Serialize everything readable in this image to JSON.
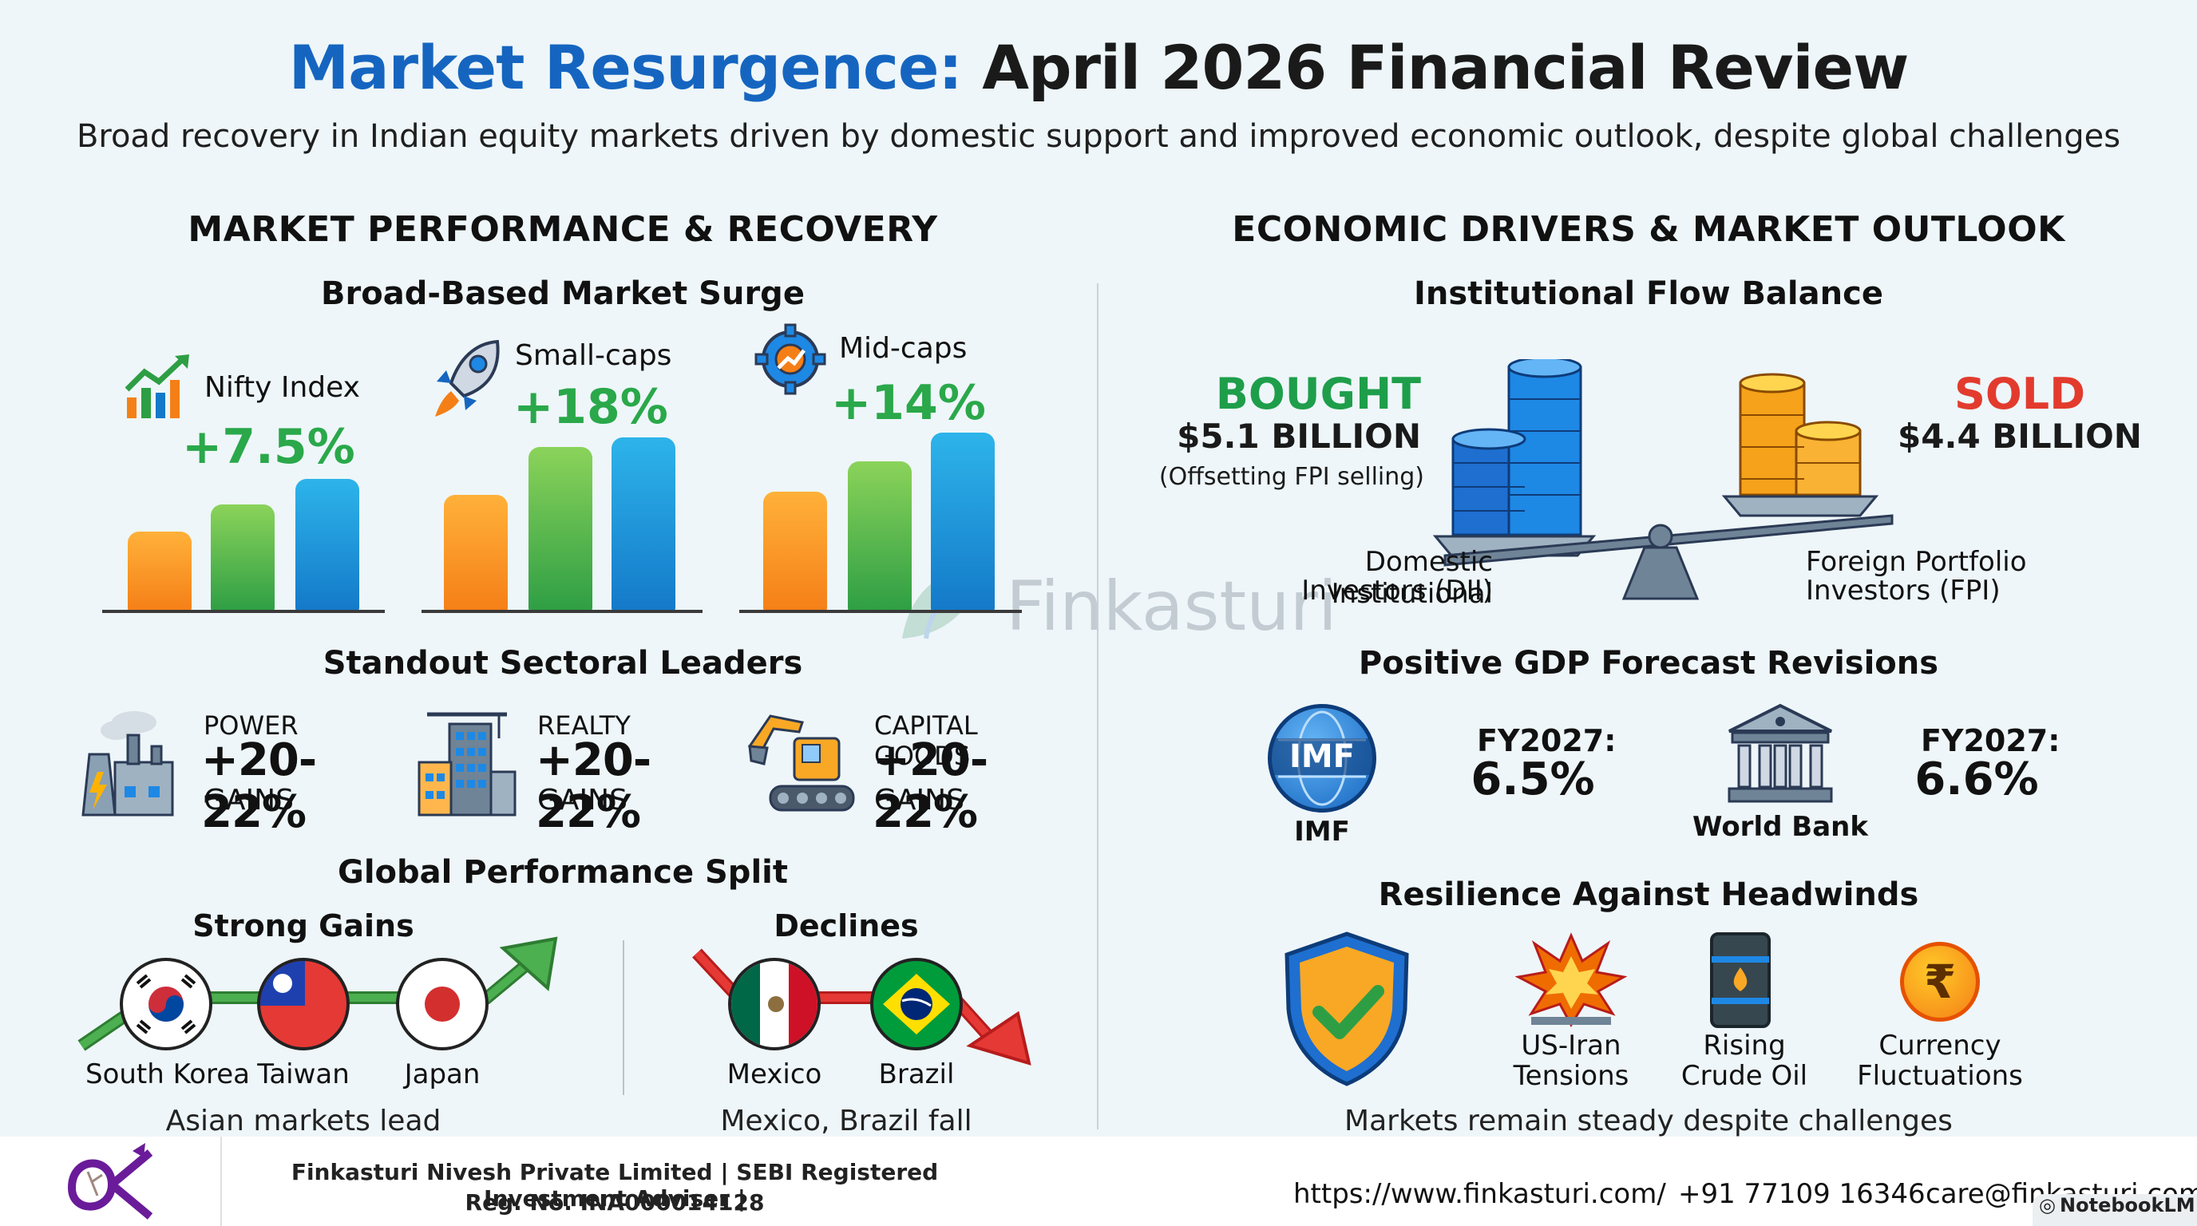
{
  "header": {
    "title_blue": "Market Resurgence:",
    "title_dark": "April 2026 Financial Review",
    "subtitle": "Broad recovery in Indian equity markets driven by domestic support and improved economic outlook, despite global challenges"
  },
  "left": {
    "heading": "MARKET PERFORMANCE & RECOVERY",
    "surge": {
      "heading": "Broad-Based Market Surge",
      "indices": [
        {
          "label": "Nifty Index",
          "value": "+7.5%",
          "icon": "chart-up-icon"
        },
        {
          "label": "Small-caps",
          "value": "+18%",
          "icon": "rocket-icon"
        },
        {
          "label": "Mid-caps",
          "value": "+14%",
          "icon": "gear-icon"
        }
      ]
    },
    "sectors": {
      "heading": "Standout Sectoral Leaders",
      "items": [
        {
          "name": "POWER",
          "value": "+20-22%",
          "suffix": "GAINS",
          "icon": "factory-icon"
        },
        {
          "name": "REALTY",
          "value": "+20-22%",
          "suffix": "GAINS",
          "icon": "building-icon"
        },
        {
          "name": "CAPITAL GOODS",
          "value": "+20-22%",
          "suffix": "GAINS",
          "icon": "excavator-icon"
        }
      ]
    },
    "global": {
      "heading": "Global Performance Split",
      "gains_heading": "Strong Gains",
      "declines_heading": "Declines",
      "gains": [
        "South Korea",
        "Taiwan",
        "Japan"
      ],
      "declines": [
        "Mexico",
        "Brazil"
      ],
      "gains_caption": "Asian markets lead",
      "declines_caption": "Mexico, Brazil fall"
    }
  },
  "right": {
    "heading": "ECONOMIC DRIVERS & MARKET OUTLOOK",
    "flow": {
      "heading": "Institutional Flow Balance",
      "bought_label": "BOUGHT",
      "bought_value": "$5.1 BILLION",
      "bought_note": "(Offsetting FPI selling)",
      "sold_label": "SOLD",
      "sold_value": "$4.4 BILLION",
      "dii_line1": "Domestic Institutional",
      "dii_line2": "Investors (DII)",
      "fpi_line1": "Foreign Portfolio",
      "fpi_line2": "Investors (FPI)"
    },
    "gdp": {
      "heading": "Positive GDP Forecast Revisions",
      "imf_badge": "IMF",
      "imf_label": "IMF",
      "imf_year": "FY2027:",
      "imf_value": "6.5%",
      "wb_label": "World Bank",
      "wb_year": "FY2027:",
      "wb_value": "6.6%"
    },
    "resilience": {
      "heading": "Resilience Against Headwinds",
      "items": [
        {
          "line1": "US-Iran",
          "line2": "Tensions",
          "icon": "explosion-icon"
        },
        {
          "line1": "Rising",
          "line2": "Crude Oil",
          "icon": "oil-barrel-icon"
        },
        {
          "line1": "Currency",
          "line2": "Fluctuations",
          "icon": "rupee-coin-icon"
        }
      ],
      "caption": "Markets remain steady despite challenges"
    }
  },
  "watermark": "Finkasturi",
  "footer": {
    "company_line1": "Finkasturi Nivesh Private Limited | SEBI Registered Investment Adviser |",
    "company_line2": "Reg. No. INA000014128",
    "website": "https://www.finkasturi.com/",
    "phone": "+91 77109 16346",
    "email": "care@finkasturi.com",
    "badge": "NotebookLM"
  },
  "colors": {
    "accent_blue": "#1565c0",
    "gain_green": "#2aa84a",
    "loss_red": "#e23b2e"
  }
}
